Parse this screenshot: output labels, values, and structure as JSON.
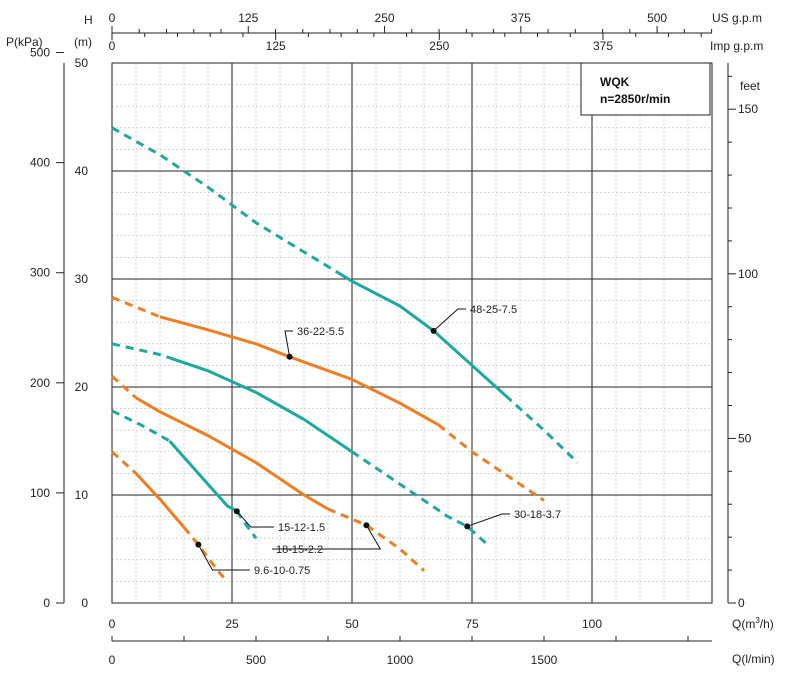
{
  "chart_data": {
    "type": "line",
    "title": "WQK",
    "subtitle": "n=2850r/min",
    "xlabel": "Q(m³/h)",
    "x_secondary_labels": {
      "l_per_min": "Q(l/min)",
      "us_gpm": "US g.p.m",
      "imp_gpm": "Imp g.p.m"
    },
    "ylabel_head": "H",
    "ylabel_head_unit": "(m)",
    "ylabel_pressure": "P(kPa)",
    "ylabel_feet": "feet",
    "xlim": [
      0,
      125
    ],
    "ylim": [
      0,
      50
    ],
    "x_ticks": [
      "0",
      "25",
      "50",
      "75",
      "100"
    ],
    "x_lpm_ticks": [
      "0",
      "500",
      "1000",
      "1500"
    ],
    "x_us_ticks": [
      "0",
      "125",
      "250",
      "375",
      "500"
    ],
    "x_imp_ticks": [
      "0",
      "125",
      "250",
      "375"
    ],
    "y_head_ticks": [
      "0",
      "10",
      "20",
      "30",
      "40",
      "50"
    ],
    "y_kpa_ticks": [
      "0",
      "100",
      "200",
      "300",
      "400",
      "500"
    ],
    "y_feet_ticks": [
      "0",
      "50",
      "100",
      "150"
    ],
    "grid": true,
    "legend": "inline labels",
    "series": [
      {
        "name": "9.6-10-0.75",
        "color": "#ef7d22",
        "points": [
          [
            0,
            14
          ],
          [
            5,
            12
          ],
          [
            10,
            9.6
          ],
          [
            15,
            7
          ],
          [
            18,
            5.4
          ],
          [
            22,
            3
          ],
          [
            24,
            2
          ]
        ],
        "solid_range": [
          5,
          15
        ],
        "marker": [
          18,
          5.4
        ]
      },
      {
        "name": "15-12-1.5",
        "color": "#1ea8a0",
        "points": [
          [
            0,
            17.8
          ],
          [
            6,
            16.5
          ],
          [
            12,
            15
          ],
          [
            15,
            13.5
          ],
          [
            20,
            11
          ],
          [
            24,
            9
          ],
          [
            26,
            8.5
          ],
          [
            28,
            7.2
          ],
          [
            30,
            6
          ]
        ],
        "solid_range": [
          12,
          26
        ],
        "marker": [
          26,
          8.5
        ]
      },
      {
        "name": "18-15-2.2",
        "color": "#ef7d22",
        "points": [
          [
            0,
            21
          ],
          [
            5,
            19
          ],
          [
            10,
            17.7
          ],
          [
            20,
            15.5
          ],
          [
            30,
            13
          ],
          [
            40,
            10
          ],
          [
            45,
            8.7
          ],
          [
            53,
            7.2
          ],
          [
            60,
            5
          ],
          [
            65,
            3
          ]
        ],
        "solid_range": [
          5,
          45
        ],
        "marker": [
          53,
          7.2
        ]
      },
      {
        "name": "30-18-3.7",
        "color": "#1ea8a0",
        "points": [
          [
            0,
            24
          ],
          [
            10,
            23
          ],
          [
            20,
            21.5
          ],
          [
            30,
            19.5
          ],
          [
            40,
            17
          ],
          [
            50,
            14
          ],
          [
            60,
            11
          ],
          [
            70,
            8
          ],
          [
            74,
            7.1
          ],
          [
            78,
            5.5
          ]
        ],
        "solid_range": [
          12,
          50
        ],
        "marker": [
          74,
          7.1
        ]
      },
      {
        "name": "36-22-5.5",
        "color": "#ef7d22",
        "points": [
          [
            0,
            28.3
          ],
          [
            10,
            26.5
          ],
          [
            20,
            25.3
          ],
          [
            30,
            24
          ],
          [
            37,
            22.8
          ],
          [
            50,
            20.7
          ],
          [
            60,
            18.5
          ],
          [
            68,
            16.5
          ],
          [
            75,
            14
          ],
          [
            85,
            11
          ],
          [
            90,
            9.5
          ]
        ],
        "solid_range": [
          10,
          68
        ],
        "marker": [
          37,
          22.8
        ]
      },
      {
        "name": "48-25-7.5",
        "color": "#1ea8a0",
        "points": [
          [
            0,
            44
          ],
          [
            10,
            41.5
          ],
          [
            20,
            38.5
          ],
          [
            30,
            35.2
          ],
          [
            40,
            32.5
          ],
          [
            50,
            29.8
          ],
          [
            60,
            27.5
          ],
          [
            67,
            25.2
          ],
          [
            80,
            20
          ],
          [
            90,
            16
          ],
          [
            97,
            13
          ]
        ],
        "solid_range": [
          48,
          82
        ],
        "marker": [
          67,
          25.2
        ]
      }
    ]
  }
}
